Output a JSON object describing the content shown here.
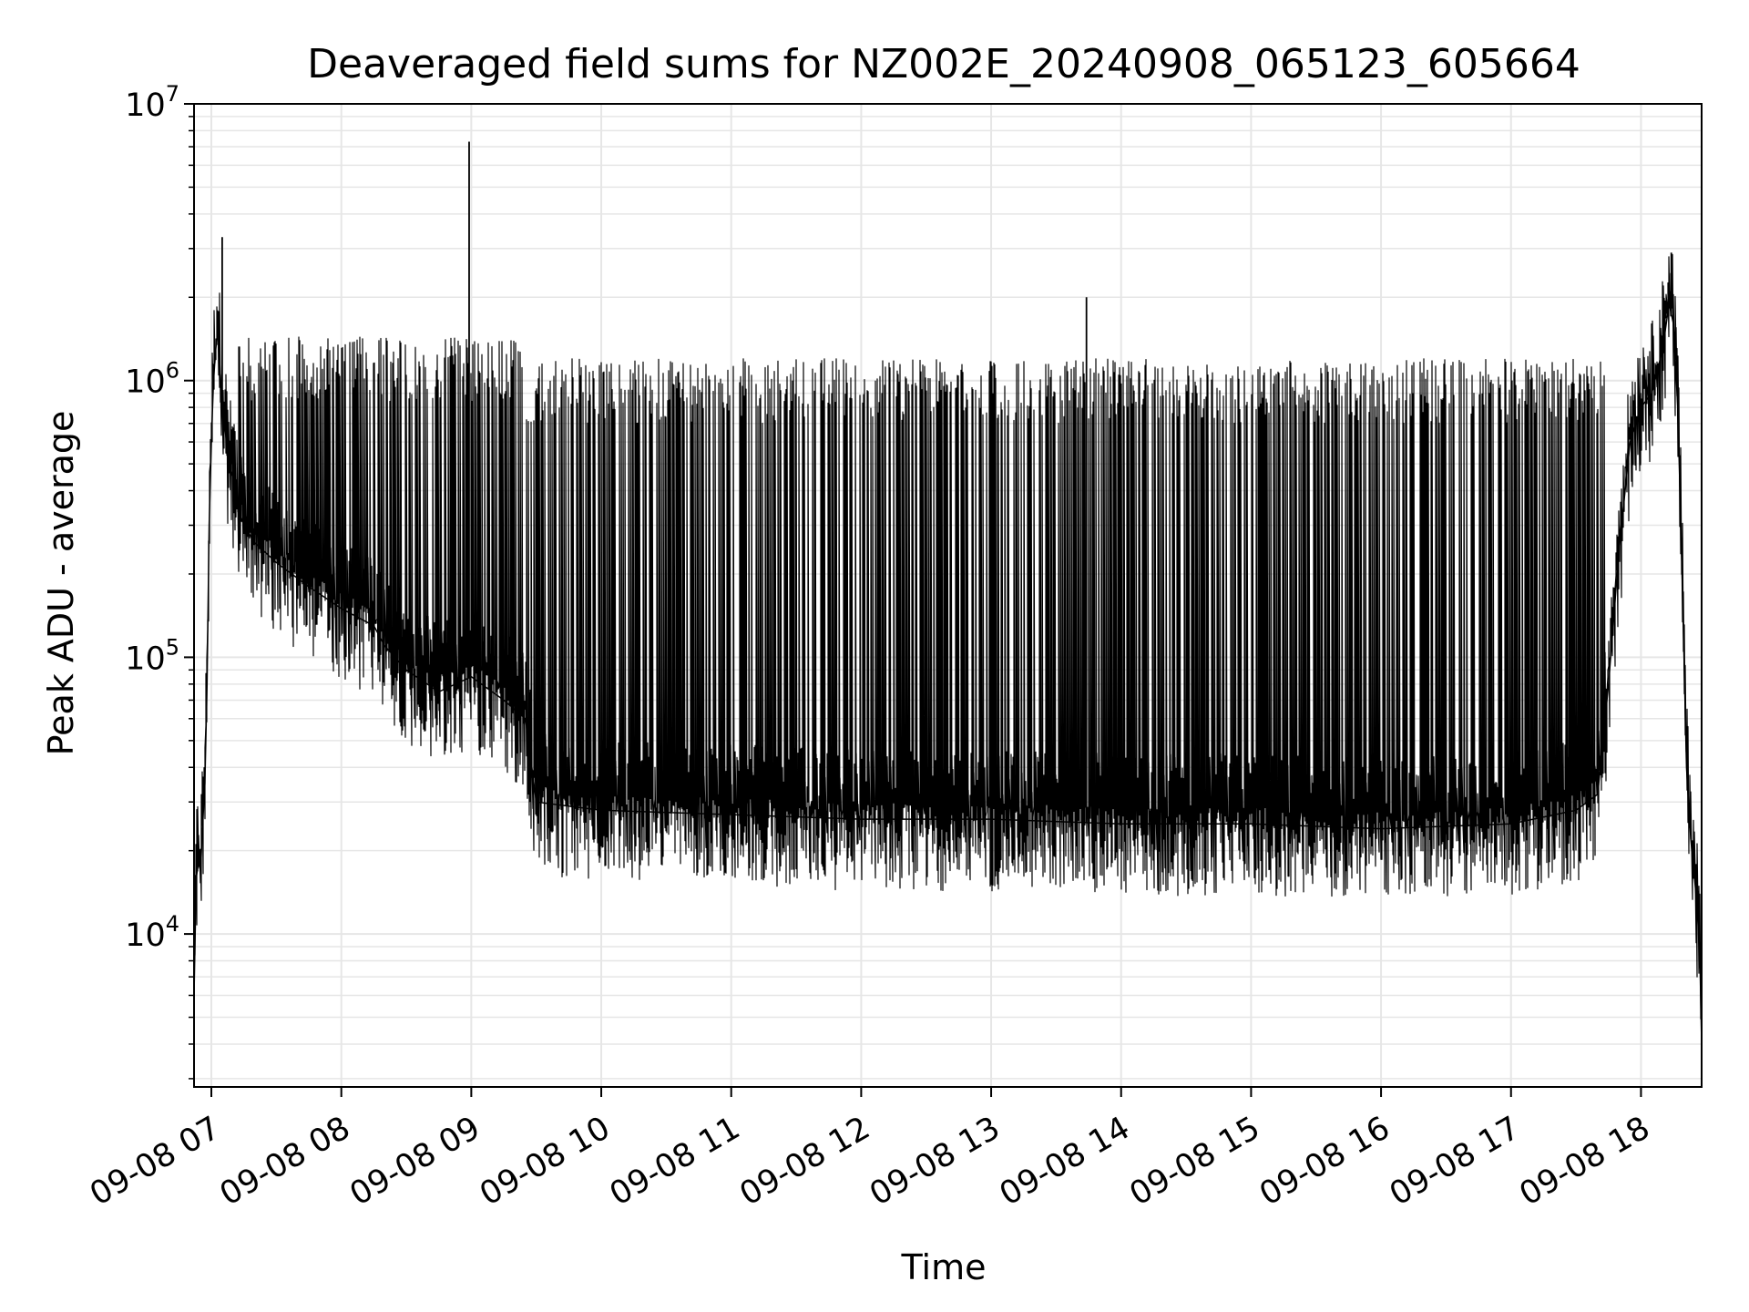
{
  "chart_data": {
    "type": "line",
    "title": "Deaveraged field sums for NZ002E_20240908_065123_605664",
    "xlabel": "Time",
    "ylabel": "Peak ADU - average",
    "y_scale": "log",
    "ylim": [
      2800,
      10000000
    ],
    "xlim": [
      "09-08 06:52",
      "09-08 18:28"
    ],
    "x_ticks": [
      {
        "t": "09-08 07:00",
        "label": "09-08 07"
      },
      {
        "t": "09-08 08:00",
        "label": "09-08 08"
      },
      {
        "t": "09-08 09:00",
        "label": "09-08 09"
      },
      {
        "t": "09-08 10:00",
        "label": "09-08 10"
      },
      {
        "t": "09-08 11:00",
        "label": "09-08 11"
      },
      {
        "t": "09-08 12:00",
        "label": "09-08 12"
      },
      {
        "t": "09-08 13:00",
        "label": "09-08 13"
      },
      {
        "t": "09-08 14:00",
        "label": "09-08 14"
      },
      {
        "t": "09-08 15:00",
        "label": "09-08 15"
      },
      {
        "t": "09-08 16:00",
        "label": "09-08 16"
      },
      {
        "t": "09-08 17:00",
        "label": "09-08 17"
      },
      {
        "t": "09-08 18:00",
        "label": "09-08 18"
      }
    ],
    "y_ticks": [
      {
        "value": 10000,
        "base": "10",
        "exp": "4"
      },
      {
        "value": 100000,
        "base": "10",
        "exp": "5"
      },
      {
        "value": 1000000,
        "base": "10",
        "exp": "6"
      },
      {
        "value": 10000000,
        "base": "10",
        "exp": "7"
      }
    ],
    "grid": true,
    "line_color": "#000000",
    "grid_color": "#e6e6e6",
    "series": [
      {
        "x": [
          "09-08 06:52",
          "09-08 06:53",
          "09-08 06:54",
          "09-08 06:55",
          "09-08 06:56",
          "09-08 06:57",
          "09-08 06:58",
          "09-08 06:59",
          "09-08 07:00",
          "09-08 07:01",
          "09-08 07:02",
          "09-08 07:03",
          "09-08 07:04",
          "09-08 07:05",
          "09-08 07:06",
          "09-08 07:07",
          "09-08 07:08",
          "09-08 07:10",
          "09-08 07:12",
          "09-08 07:15",
          "09-08 07:20",
          "09-08 07:30",
          "09-08 07:45",
          "09-08 08:00",
          "09-08 08:15",
          "09-08 08:20",
          "09-08 08:30",
          "09-08 08:45",
          "09-08 09:00",
          "09-08 09:15",
          "09-08 09:25",
          "09-08 09:30",
          "09-08 10:00",
          "09-08 11:00",
          "09-08 12:00",
          "09-08 13:00",
          "09-08 14:00",
          "09-08 15:00",
          "09-08 16:00",
          "09-08 17:00",
          "09-08 17:30",
          "09-08 17:40",
          "09-08 17:45",
          "09-08 17:50",
          "09-08 17:55",
          "09-08 18:00",
          "09-08 18:05",
          "09-08 18:10",
          "09-08 18:13",
          "09-08 18:15",
          "09-08 18:17",
          "09-08 18:19",
          "09-08 18:21",
          "09-08 18:23",
          "09-08 18:25",
          "09-08 18:27",
          "09-08 18:28"
        ],
        "values": [
          6000,
          16000,
          18000,
          17000,
          25000,
          35000,
          80000,
          300000,
          600000,
          1000000,
          1300000,
          1500000,
          1100000,
          800000,
          700000,
          600000,
          500000,
          450000,
          350000,
          300000,
          260000,
          220000,
          180000,
          150000,
          130000,
          110000,
          90000,
          75000,
          85000,
          70000,
          60000,
          30000,
          28000,
          27000,
          26000,
          26000,
          25000,
          25000,
          24000,
          25000,
          28000,
          32000,
          80000,
          250000,
          600000,
          800000,
          900000,
          1300000,
          1900000,
          1600000,
          800000,
          200000,
          40000,
          22000,
          15000,
          10000,
          4000
        ]
      }
    ],
    "annotations": [
      {
        "t": "09-08 07:05",
        "value": 3300000
      },
      {
        "t": "09-08 08:59",
        "value": 7300000
      },
      {
        "t": "09-08 13:44",
        "value": 2000000
      },
      {
        "t": "09-08 18:14",
        "value": 2900000
      }
    ]
  }
}
